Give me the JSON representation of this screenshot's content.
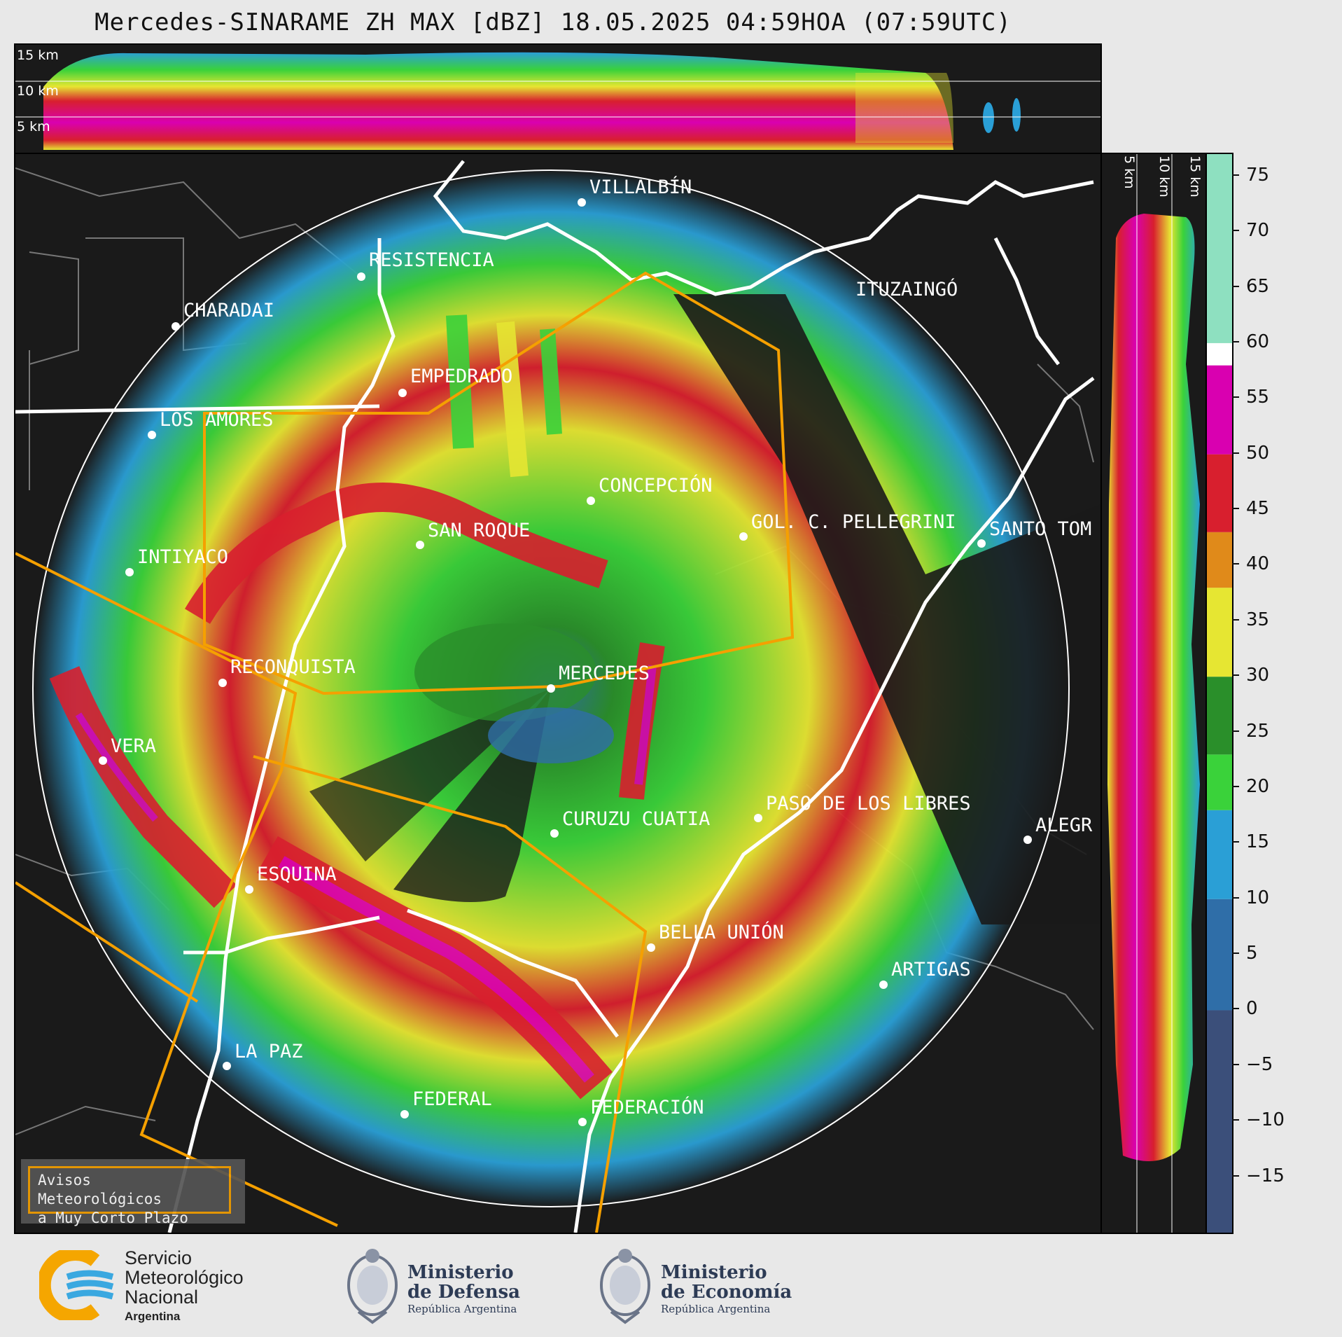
{
  "header": {
    "title": "Mercedes-SINARAME ZH MAX [dBZ] 18.05.2025 04:59HOA (07:59UTC)"
  },
  "top_profile": {
    "height_labels": [
      "15 km",
      "10 km",
      "5 km"
    ]
  },
  "side_profile": {
    "height_labels": [
      "5 km",
      "10 km",
      "15 km"
    ]
  },
  "colorbar": {
    "unit": "dBZ",
    "ticks": [
      "75",
      "70",
      "65",
      "60",
      "55",
      "50",
      "45",
      "40",
      "35",
      "30",
      "25",
      "20",
      "15",
      "10",
      "5",
      "0",
      "−5",
      "−10",
      "−15"
    ],
    "range": [
      -20,
      77
    ],
    "stops": [
      {
        "from": -20,
        "to": 0,
        "color": "#3b4f7a"
      },
      {
        "from": 0,
        "to": 10,
        "color": "#2f6ea8"
      },
      {
        "from": 10,
        "to": 18,
        "color": "#2a9fd6"
      },
      {
        "from": 18,
        "to": 23,
        "color": "#3ad23a"
      },
      {
        "from": 23,
        "to": 30,
        "color": "#2a8f2a"
      },
      {
        "from": 30,
        "to": 38,
        "color": "#e6e632"
      },
      {
        "from": 38,
        "to": 43,
        "color": "#e08a1a"
      },
      {
        "from": 43,
        "to": 50,
        "color": "#d81f2e"
      },
      {
        "from": 50,
        "to": 58,
        "color": "#d900b0"
      },
      {
        "from": 58,
        "to": 60,
        "color": "#ffffff"
      },
      {
        "from": 60,
        "to": 77,
        "color": "#8ee0c0"
      }
    ]
  },
  "map": {
    "cities": [
      {
        "name": "VILLALBÍN"
      },
      {
        "name": "RESISTENCIA"
      },
      {
        "name": "CHARADAI"
      },
      {
        "name": "ITUZAINGÓ"
      },
      {
        "name": "EMPEDRADO"
      },
      {
        "name": "LOS AMORES"
      },
      {
        "name": "CONCEPCIÓN"
      },
      {
        "name": "SAN ROQUE"
      },
      {
        "name": "GOL. C. PELLEGRINI"
      },
      {
        "name": "SANTO TOM"
      },
      {
        "name": "INTIYACO"
      },
      {
        "name": "RECONQUISTA"
      },
      {
        "name": "MERCEDES"
      },
      {
        "name": "VERA"
      },
      {
        "name": "CURUZU CUATIA"
      },
      {
        "name": "PASO DE LOS LIBRES"
      },
      {
        "name": "ALEGR"
      },
      {
        "name": "ESQUINA"
      },
      {
        "name": "BELLA UNIÓN"
      },
      {
        "name": "ARTIGAS"
      },
      {
        "name": "LA PAZ"
      },
      {
        "name": "FEDERAL"
      },
      {
        "name": "FEDERACIÓN"
      }
    ],
    "legend": {
      "line1": "Avisos Meteorológicos",
      "line2": "a Muy Corto Plazo"
    },
    "warning_color": "#f5a000"
  },
  "footer": {
    "smn": {
      "line1": "Servicio",
      "line2": "Meteorológico",
      "line3": "Nacional",
      "line4": "Argentina"
    },
    "defensa": {
      "line1": "Ministerio",
      "line2": "de Defensa",
      "line3": "República Argentina"
    },
    "economia": {
      "line1": "Ministerio",
      "line2": "de Economía",
      "line3": "República Argentina"
    }
  }
}
